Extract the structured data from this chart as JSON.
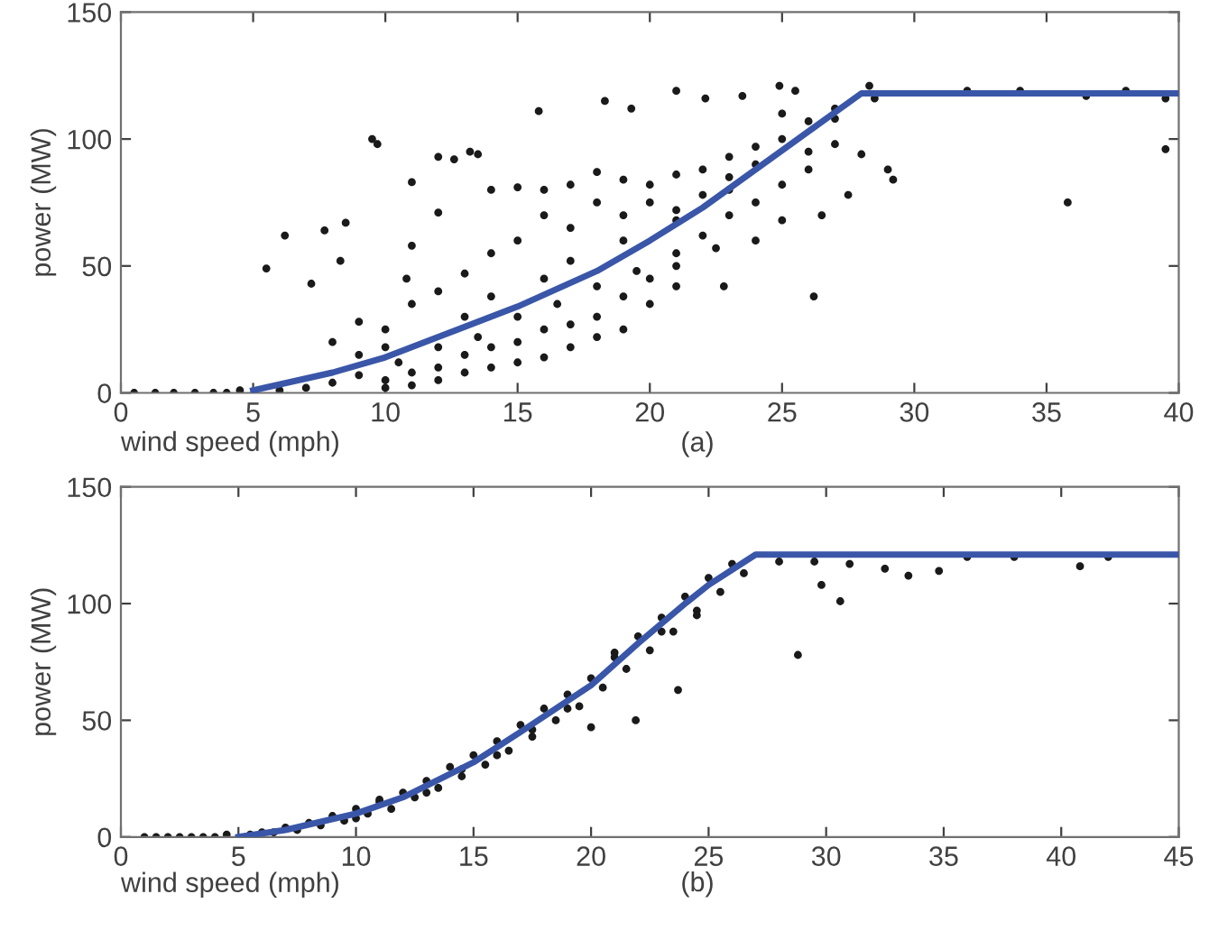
{
  "chart_data": [
    {
      "type": "scatter",
      "xlabel": "wind speed (mph)",
      "ylabel": "power (MW)",
      "annotations": [
        "(a)"
      ],
      "xlim": [
        0,
        40
      ],
      "ylim": [
        0,
        150
      ],
      "xticks": [
        0,
        5,
        10,
        15,
        20,
        25,
        30,
        35,
        40
      ],
      "yticks": [
        0,
        50,
        100,
        150
      ],
      "grid": false,
      "legend": false,
      "series": [
        {
          "marker": "circle",
          "color": "#1a1a1a",
          "x": [
            0.5,
            1.3,
            2,
            2.8,
            3.5,
            4,
            4.5,
            9.5,
            9.7,
            6.2,
            5.5,
            7.2,
            7.7,
            8.5,
            8.3,
            11,
            11,
            12,
            12.6,
            13.2,
            13.5,
            15.8,
            18.3,
            19.3,
            21,
            22.1,
            23.5,
            24.9,
            25.5,
            28.3,
            32,
            34,
            36.5,
            38,
            39.5,
            39.5,
            35.8,
            26.2,
            22.8,
            10.8,
            12,
            14,
            15,
            16,
            17,
            18,
            19,
            20,
            21,
            22,
            23,
            24,
            25,
            26,
            27,
            28,
            29,
            29.2,
            27.5,
            26.5,
            25,
            24,
            22.5,
            21,
            19.5,
            18,
            16.5,
            15,
            13.5,
            12,
            10.5,
            9,
            8,
            7,
            6,
            10,
            11,
            12,
            13,
            14,
            15,
            16,
            17,
            18,
            19,
            20,
            21,
            22,
            23,
            24,
            25,
            26,
            8,
            9,
            10,
            11,
            12,
            13,
            14,
            15,
            16,
            17,
            18,
            19,
            20,
            21,
            22,
            23,
            24,
            25,
            26,
            27,
            10,
            11,
            12,
            13,
            14,
            15,
            16,
            17,
            18,
            19,
            20,
            21,
            9,
            10,
            13,
            14,
            16,
            17,
            19,
            21,
            23,
            28.5,
            27
          ],
          "values": [
            0,
            0,
            0,
            0,
            0,
            0,
            1,
            100,
            98,
            62,
            49,
            43,
            64,
            67,
            52,
            83,
            58,
            93,
            92,
            95,
            94,
            111,
            115,
            112,
            119,
            116,
            117,
            121,
            119,
            121,
            119,
            119,
            117,
            119,
            116,
            96,
            75,
            38,
            42,
            45,
            71,
            80,
            81,
            80,
            82,
            87,
            84,
            82,
            86,
            88,
            93,
            90,
            100,
            95,
            98,
            94,
            88,
            84,
            78,
            70,
            68,
            60,
            57,
            55,
            48,
            42,
            35,
            30,
            22,
            18,
            12,
            7,
            4,
            2,
            1,
            5,
            8,
            10,
            15,
            18,
            20,
            25,
            27,
            30,
            38,
            45,
            50,
            62,
            70,
            75,
            82,
            88,
            20,
            28,
            25,
            35,
            40,
            47,
            55,
            60,
            70,
            65,
            75,
            70,
            75,
            68,
            78,
            85,
            97,
            110,
            107,
            112,
            2,
            3,
            5,
            8,
            10,
            12,
            14,
            18,
            22,
            25,
            35,
            42,
            15,
            18,
            30,
            38,
            45,
            52,
            60,
            72,
            80,
            116,
            108
          ]
        },
        {
          "type": "line",
          "color": "#3a56a8",
          "x": [
            5,
            8,
            10,
            12,
            15,
            18,
            20,
            22,
            24,
            26,
            28,
            40
          ],
          "values": [
            1,
            8,
            14,
            22,
            34,
            48,
            60,
            73,
            88,
            103,
            118,
            118
          ]
        }
      ]
    },
    {
      "type": "scatter",
      "xlabel": "wind speed (mph)",
      "ylabel": "power (MW)",
      "annotations": [
        "(b)"
      ],
      "xlim": [
        0,
        45
      ],
      "ylim": [
        0,
        150
      ],
      "xticks": [
        0,
        5,
        10,
        15,
        20,
        25,
        30,
        35,
        40,
        45
      ],
      "yticks": [
        0,
        50,
        100,
        150
      ],
      "grid": false,
      "legend": false,
      "series": [
        {
          "marker": "circle",
          "color": "#1a1a1a",
          "x": [
            1,
            1.5,
            2,
            2.5,
            3,
            3.5,
            4,
            4.5,
            5.5,
            6,
            6.5,
            7,
            7.5,
            8,
            8.5,
            9,
            9.5,
            10,
            10.5,
            11,
            11.5,
            12,
            12.5,
            13,
            13.5,
            14,
            14.5,
            15,
            15.5,
            16,
            16.5,
            17,
            17.5,
            18,
            18.5,
            19,
            19.5,
            20,
            20.5,
            21,
            21.5,
            22,
            22.5,
            23,
            23.5,
            24,
            24.5,
            25,
            25.5,
            26,
            26.5,
            10,
            11,
            13,
            14.5,
            16,
            17.5,
            19,
            21,
            23,
            24.5,
            28,
            29.5,
            31,
            32.5,
            33.5,
            34.8,
            36,
            38,
            40.8,
            42,
            29.8,
            30.6,
            28.8,
            23.7,
            21.9,
            20
          ],
          "values": [
            0,
            0,
            0,
            0,
            0,
            0,
            0,
            1,
            1,
            2,
            2,
            4,
            3,
            6,
            5,
            9,
            7,
            12,
            10,
            15,
            12,
            19,
            17,
            24,
            21,
            30,
            26,
            35,
            31,
            41,
            37,
            48,
            43,
            55,
            50,
            61,
            56,
            68,
            64,
            77,
            72,
            86,
            80,
            94,
            88,
            103,
            97,
            111,
            105,
            117,
            113,
            8,
            16,
            19,
            29,
            35,
            46,
            55,
            79,
            88,
            95,
            118,
            118,
            117,
            115,
            112,
            114,
            120,
            120,
            116,
            120,
            108,
            101,
            78,
            63,
            50,
            47
          ]
        },
        {
          "type": "line",
          "color": "#3a56a8",
          "x": [
            5,
            7,
            10,
            12,
            15,
            17,
            20,
            22,
            24,
            25,
            27,
            45
          ],
          "values": [
            0,
            3,
            10,
            17,
            32,
            45,
            65,
            83,
            100,
            108,
            121,
            121
          ]
        }
      ]
    }
  ]
}
